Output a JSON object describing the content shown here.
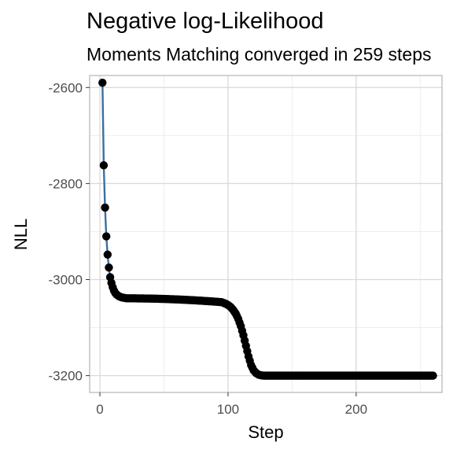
{
  "chart_data": {
    "type": "line",
    "title": "Negative log-Likelihood",
    "subtitle": "Moments Matching converged in 259 steps",
    "xlabel": "Step",
    "ylabel": "NLL",
    "xlim": [
      -8,
      267
    ],
    "ylim": [
      -3235,
      -2575
    ],
    "xticks": [
      0,
      100,
      200
    ],
    "yticks": [
      -3200,
      -3000,
      -2800,
      -2600
    ],
    "xtick_labels": [
      "0",
      "100",
      "200"
    ],
    "ytick_labels": [
      "-3200",
      "-3000",
      "-2800",
      "-2600"
    ],
    "grid": true,
    "n_steps": 259,
    "line_color": "#3a6fa3",
    "point_color": "#000000",
    "segments": {
      "initial": [
        [
          2,
          -2590
        ],
        [
          3,
          -2762
        ],
        [
          4,
          -2850
        ],
        [
          5,
          -2910
        ],
        [
          6,
          -2948
        ],
        [
          7,
          -2975
        ],
        [
          8,
          -2995
        ],
        [
          9,
          -3007
        ],
        [
          10,
          -3016
        ],
        [
          11,
          -3023
        ],
        [
          12,
          -3028
        ],
        [
          13,
          -3031
        ],
        [
          14,
          -3033
        ],
        [
          15,
          -3035
        ],
        [
          16,
          -3036
        ],
        [
          17,
          -3037
        ],
        [
          18,
          -3037.5
        ],
        [
          19,
          -3038
        ],
        [
          20,
          -3038.5
        ]
      ],
      "plateau": {
        "x_start": 20,
        "x_end": 95,
        "y_start": -3039,
        "y_end": -3047
      },
      "transition": [
        [
          95,
          -3047
        ],
        [
          98,
          -3050
        ],
        [
          100,
          -3053
        ],
        [
          102,
          -3057
        ],
        [
          104,
          -3063
        ],
        [
          106,
          -3071
        ],
        [
          108,
          -3082
        ],
        [
          110,
          -3097
        ],
        [
          112,
          -3116
        ],
        [
          114,
          -3138
        ],
        [
          116,
          -3160
        ],
        [
          118,
          -3178
        ],
        [
          120,
          -3189
        ],
        [
          122,
          -3195
        ],
        [
          124,
          -3198
        ],
        [
          126,
          -3199.5
        ],
        [
          128,
          -3200
        ]
      ],
      "final": {
        "x_start": 128,
        "x_end": 260,
        "y": -3200
      }
    }
  }
}
